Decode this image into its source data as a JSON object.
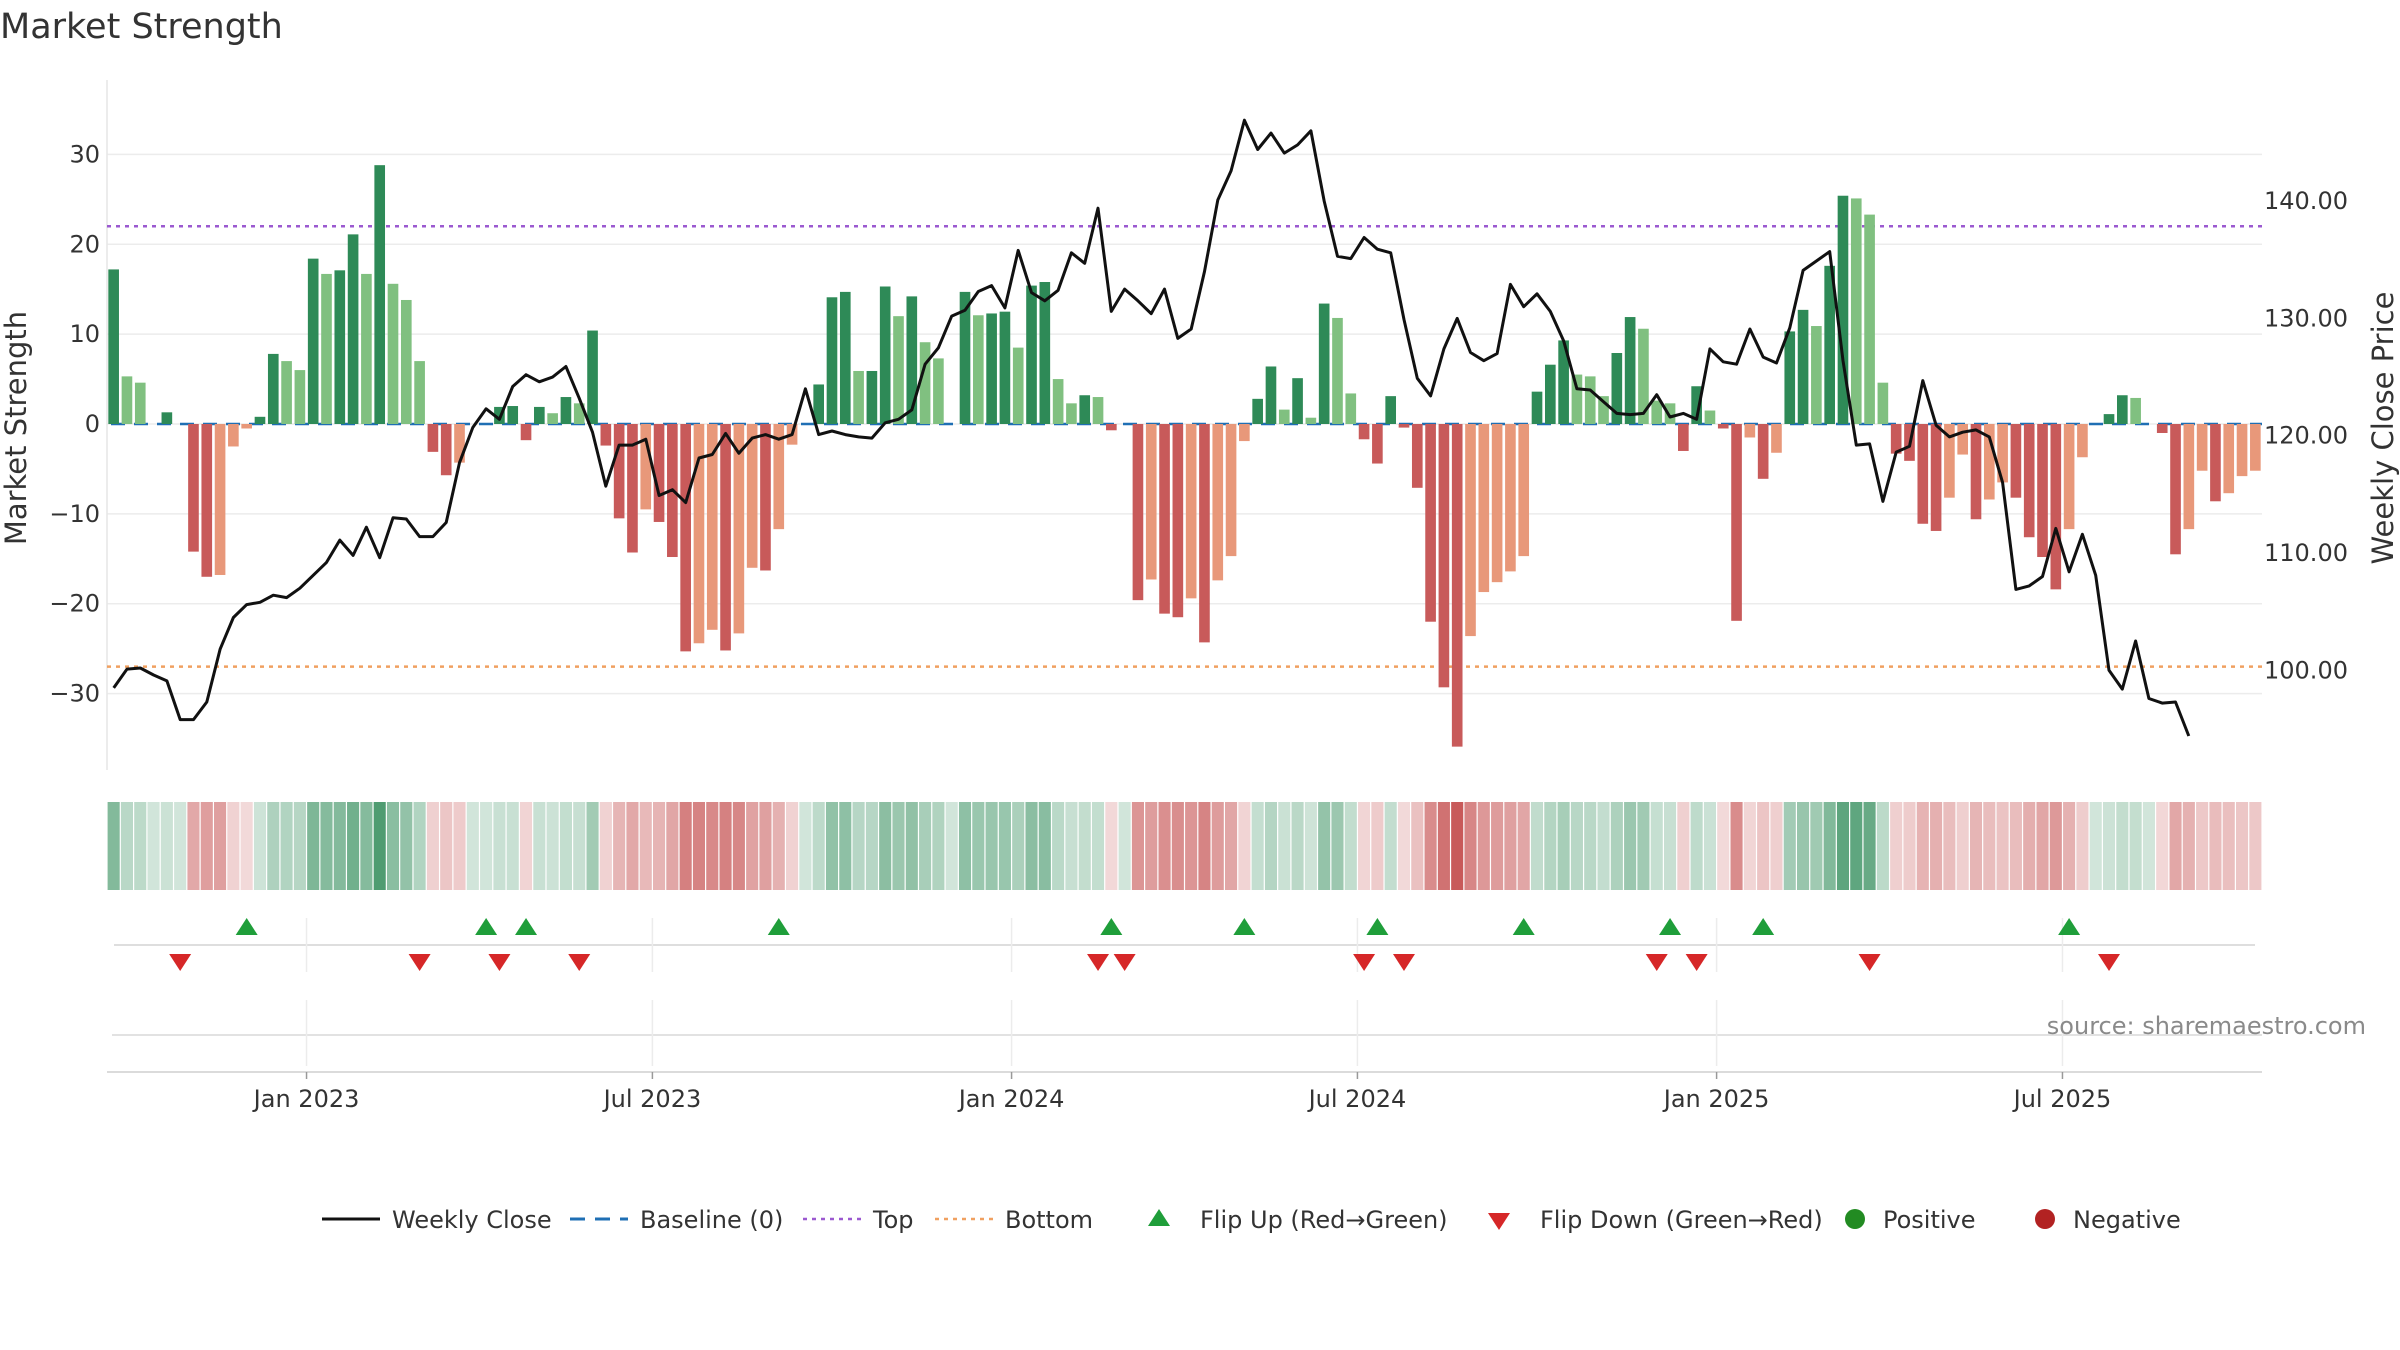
{
  "chart_data": {
    "type": "bar",
    "title": "Market Strength",
    "ylabel_left": "Market Strength",
    "ylabel_right": "Weekly Close Price",
    "source": "source: sharemaestro.com",
    "ylim_left": [
      -38.5,
      38.5
    ],
    "ylim_right": [
      91.5,
      150.5
    ],
    "yticks_left": [
      {
        "value": 30,
        "label": "30"
      },
      {
        "value": 20,
        "label": "20"
      },
      {
        "value": 10,
        "label": "10"
      },
      {
        "value": 0,
        "label": "0"
      },
      {
        "value": -10,
        "label": "−10"
      },
      {
        "value": -20,
        "label": "−20"
      },
      {
        "value": -30,
        "label": "−30"
      }
    ],
    "yticks_right": [
      {
        "value": 140,
        "label": "140.00"
      },
      {
        "value": 130,
        "label": "130.00"
      },
      {
        "value": 120,
        "label": "120.00"
      },
      {
        "value": 110,
        "label": "110.00"
      },
      {
        "value": 100,
        "label": "100.00"
      }
    ],
    "xticks": [
      {
        "week": 15,
        "label": "Jan 2023"
      },
      {
        "week": 41,
        "label": "Jul 2023"
      },
      {
        "week": 68,
        "label": "Jan 2024"
      },
      {
        "week": 94,
        "label": "Jul 2024"
      },
      {
        "week": 121,
        "label": "Jan 2025"
      },
      {
        "week": 147,
        "label": "Jul 2025"
      }
    ],
    "top_threshold": 22,
    "bottom_threshold": -27,
    "baseline": 0,
    "strength": [
      17.2,
      5.3,
      4.6,
      0,
      1.3,
      0,
      -14.2,
      -17,
      -16.8,
      -2.5,
      -0.5,
      0.8,
      7.8,
      7,
      6,
      18.4,
      16.7,
      17.1,
      21.1,
      16.7,
      28.8,
      15.6,
      13.8,
      7,
      -3.1,
      -5.7,
      -4.3,
      0,
      0,
      1.9,
      2,
      -1.8,
      1.9,
      1.2,
      3,
      2.3,
      10.4,
      -2.4,
      -10.5,
      -14.3,
      -9.5,
      -10.9,
      -14.8,
      -25.3,
      -24.4,
      -22.9,
      -25.2,
      -23.3,
      -16,
      -16.3,
      -11.7,
      -2.3,
      0,
      4.4,
      14.1,
      14.7,
      5.9,
      5.9,
      15.3,
      12,
      14.2,
      9.1,
      7.3,
      0,
      14.7,
      12.1,
      12.3,
      12.5,
      8.5,
      15.4,
      15.8,
      5,
      2.3,
      3.2,
      3,
      -0.7,
      0,
      -19.6,
      -17.3,
      -21.1,
      -21.5,
      -19.4,
      -24.3,
      -17.4,
      -14.7,
      -1.9,
      2.8,
      6.4,
      1.6,
      5.1,
      0.7,
      13.4,
      11.8,
      3.4,
      -1.7,
      -4.4,
      3.1,
      -0.4,
      -7.1,
      -22,
      -29.3,
      -35.9,
      -23.6,
      -18.7,
      -17.6,
      -16.4,
      -14.7,
      3.6,
      6.6,
      9.3,
      5.5,
      5.3,
      3.1,
      7.9,
      11.9,
      10.6,
      2.6,
      2.3,
      -3,
      4.2,
      1.5,
      -0.5,
      -21.9,
      -1.5,
      -6.1,
      -3.2,
      10.3,
      12.7,
      10.9,
      17.6,
      25.4,
      25.1,
      23.3,
      4.6,
      -3.3,
      -4.1,
      -11.1,
      -11.9,
      -8.2,
      -3.4,
      -10.6,
      -8.4,
      -6.5,
      -8.2,
      -12.6,
      -14.8,
      -18.4,
      -11.7,
      -3.7,
      0,
      1.1,
      3.2,
      2.9,
      0,
      -1,
      -14.5,
      -11.7,
      -5.2,
      -8.6,
      -7.7,
      -5.8,
      -5.2
    ],
    "weekly_close": [
      98.5,
      100.1,
      100.2,
      99.6,
      99.1,
      95.8,
      95.8,
      97.3,
      101.8,
      104.5,
      105.6,
      105.8,
      106.4,
      106.2,
      107,
      108.1,
      109.2,
      111.1,
      109.8,
      112.2,
      109.6,
      113,
      112.9,
      111.4,
      111.4,
      112.6,
      117.7,
      120.7,
      122.3,
      121.4,
      124.2,
      125.2,
      124.6,
      125,
      125.9,
      123.2,
      120.3,
      115.7,
      119.2,
      119.2,
      119.7,
      114.9,
      115.4,
      114.3,
      118.1,
      118.4,
      120.2,
      118.5,
      119.8,
      120.1,
      119.7,
      120.1,
      124,
      120.1,
      120.4,
      120.1,
      119.9,
      119.8,
      121.1,
      121.4,
      122.2,
      126.1,
      127.5,
      130.2,
      130.7,
      132.3,
      132.8,
      130.9,
      135.8,
      132.2,
      131.5,
      132.4,
      135.6,
      134.7,
      139.4,
      130.6,
      132.5,
      131.5,
      130.4,
      132.5,
      128.3,
      129.1,
      134,
      140.1,
      142.6,
      146.9,
      144.4,
      145.8,
      144.1,
      144.8,
      146,
      140,
      135.3,
      135.1,
      136.9,
      135.9,
      135.6,
      129.9,
      124.9,
      123.4,
      127.4,
      130,
      127.1,
      126.4,
      127,
      132.9,
      131,
      132.1,
      130.6,
      128.1,
      124,
      123.9,
      122.9,
      121.9,
      121.8,
      121.9,
      123.5,
      121.6,
      121.9,
      121.4,
      127.4,
      126.3,
      126.1,
      129.1,
      126.7,
      126.2,
      129.2,
      134.1,
      134.9,
      135.7,
      126.4,
      119.2,
      119.3,
      114.4,
      118.6,
      119.1,
      124.7,
      120.9,
      119.9,
      120.3,
      120.5,
      119.9,
      116,
      106.9,
      107.2,
      108,
      112.1,
      108.4,
      111.6,
      108.1,
      100,
      98.4,
      102.5,
      97.6,
      97.2,
      97.3,
      94.4
    ],
    "flip_up_weeks": [
      10,
      28,
      31,
      50,
      75,
      85,
      95,
      106,
      117,
      124,
      147
    ],
    "flip_down_weeks": [
      5,
      23,
      29,
      35,
      74,
      76,
      94,
      97,
      116,
      119,
      132,
      150
    ],
    "colors": {
      "strong_green": "#2e8a57",
      "light_green": "#80c080",
      "strong_red": "#c85a5a",
      "light_red": "#e8987a",
      "weekly_close": "#111111",
      "baseline": "#1f6fb4",
      "top": "#9b59d0",
      "bottom": "#f0a060",
      "flip_up": "#1f9e3a",
      "flip_down": "#d62728",
      "positive": "#228b22",
      "negative": "#b22222"
    },
    "legend": [
      {
        "key": "weekly_close",
        "label": "Weekly Close",
        "symbol": "line"
      },
      {
        "key": "baseline",
        "label": "Baseline (0)",
        "symbol": "dash"
      },
      {
        "key": "top",
        "label": "Top",
        "symbol": "dot"
      },
      {
        "key": "bottom",
        "label": "Bottom",
        "symbol": "dot"
      },
      {
        "key": "flip_up",
        "label": "Flip Up (Red→Green)",
        "symbol": "tri-up"
      },
      {
        "key": "flip_down",
        "label": "Flip Down (Green→Red)",
        "symbol": "tri-down"
      },
      {
        "key": "positive",
        "label": "Positive",
        "symbol": "circle"
      },
      {
        "key": "negative",
        "label": "Negative",
        "symbol": "circle"
      }
    ]
  }
}
